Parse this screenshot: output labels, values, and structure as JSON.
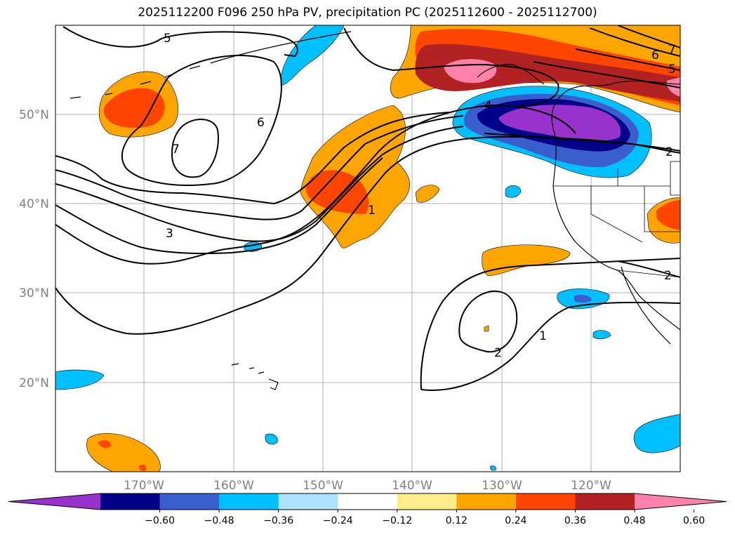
{
  "title": "2025112200 F096 250 hPa PV, precipitation PC (2025112600 - 2025112700)",
  "map": {
    "lat_labels": [
      "50°N",
      "40°N",
      "30°N",
      "20°N"
    ],
    "lon_labels": [
      "170°W",
      "160°W",
      "150°W",
      "140°W",
      "130°W",
      "120°W"
    ],
    "contour_labels": [
      "5",
      "6",
      "7",
      "3",
      "1",
      "2",
      "1",
      "2",
      "4",
      "5",
      "6",
      "7",
      "2"
    ]
  },
  "colorbar": {
    "ticks": [
      "−0.60",
      "−0.48",
      "−0.36",
      "−0.24",
      "−0.12",
      "0.12",
      "0.24",
      "0.36",
      "0.48",
      "0.60"
    ],
    "colors": [
      "#9932cc",
      "#00008b",
      "#3a5fcd",
      "#00bfff",
      "#b0e2ff",
      "#ffffff",
      "#ffec8b",
      "#ffa500",
      "#ff4500",
      "#b22222",
      "#ff82ab"
    ]
  }
}
